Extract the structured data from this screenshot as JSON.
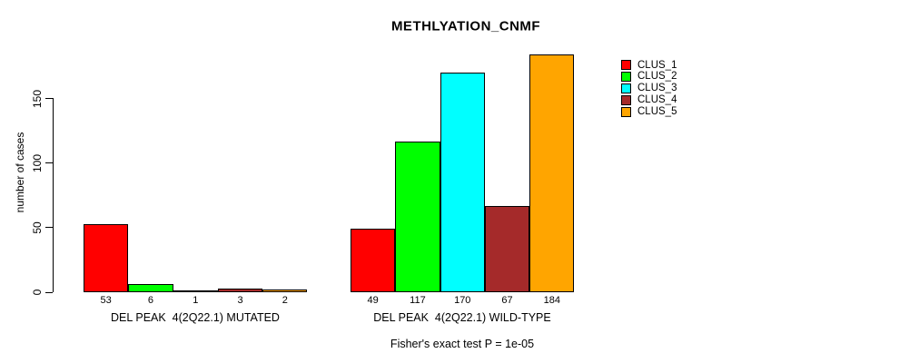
{
  "chart_data": {
    "type": "bar",
    "title": "METHLYATION_CNMF",
    "ylabel": "number of cases",
    "ylim": [
      0,
      150
    ],
    "yticks": [
      0,
      50,
      100,
      150
    ],
    "grid": false,
    "legend_position": "top-right",
    "clusters": [
      {
        "name": "CLUS_1",
        "color": "#FF0000"
      },
      {
        "name": "CLUS_2",
        "color": "#00FF00"
      },
      {
        "name": "CLUS_3",
        "color": "#00FFFF"
      },
      {
        "name": "CLUS_4",
        "color": "#A52A2A"
      },
      {
        "name": "CLUS_5",
        "color": "#FFA500"
      }
    ],
    "categories": [
      "DEL PEAK  4(2Q22.1) MUTATED",
      "DEL PEAK  4(2Q22.1) WILD-TYPE"
    ],
    "series": [
      {
        "name": "CLUS_1",
        "values": [
          53,
          49
        ]
      },
      {
        "name": "CLUS_2",
        "values": [
          6,
          117
        ]
      },
      {
        "name": "CLUS_3",
        "values": [
          1,
          170
        ]
      },
      {
        "name": "CLUS_4",
        "values": [
          3,
          67
        ]
      },
      {
        "name": "CLUS_5",
        "values": [
          2,
          184
        ]
      }
    ],
    "groups": [
      {
        "label": "DEL PEAK  4(2Q22.1) MUTATED",
        "values": [
          53,
          6,
          1,
          3,
          2
        ]
      },
      {
        "label": "DEL PEAK  4(2Q22.1) WILD-TYPE",
        "values": [
          49,
          117,
          170,
          67,
          184
        ]
      }
    ],
    "footnote": "Fisher's exact test P = 1e-05"
  }
}
